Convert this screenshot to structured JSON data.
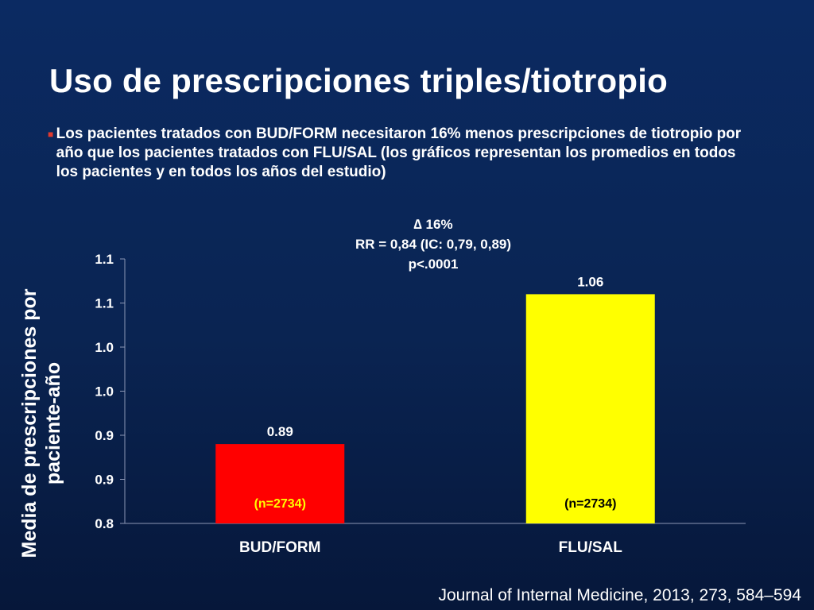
{
  "slide": {
    "title": "Uso de prescripciones triples/tiotropio",
    "bullet": "Los pacientes tratados con BUD/FORM necesitaron 16% menos prescripciones de tiotropio por año que los pacientes tratados con FLU/SAL (los gráficos representan los promedios en todos los pacientes y en todos los años del estudio)",
    "annotation": {
      "line1": "∆ 16%",
      "line2": "RR = 0,84  (IC: 0,79, 0,89)",
      "line3": "p<.0001"
    },
    "citation": "Journal of Internal Medicine, 2013, 273, 584–594"
  },
  "chart_data": {
    "type": "bar",
    "categories": [
      "BUD/FORM",
      "FLU/SAL"
    ],
    "values": [
      0.89,
      1.06
    ],
    "data_labels": [
      "0.89",
      "1.06"
    ],
    "n_labels": [
      "(n=2734)",
      "(n=2734)"
    ],
    "colors": [
      "#ff0000",
      "#ffff00"
    ],
    "n_label_colors": [
      "#ffff00",
      "#000000"
    ],
    "ylabel": "Media de prescripciones por paciente-año",
    "ylim": [
      0.8,
      1.1
    ],
    "yticks": [
      0.8,
      0.85,
      0.9,
      0.95,
      1.0,
      1.05,
      1.1
    ],
    "ytick_labels": [
      "0.8",
      "0.9",
      "0.9",
      "1.0",
      "1.0",
      "1.1",
      "1.1"
    ],
    "grid": false
  }
}
